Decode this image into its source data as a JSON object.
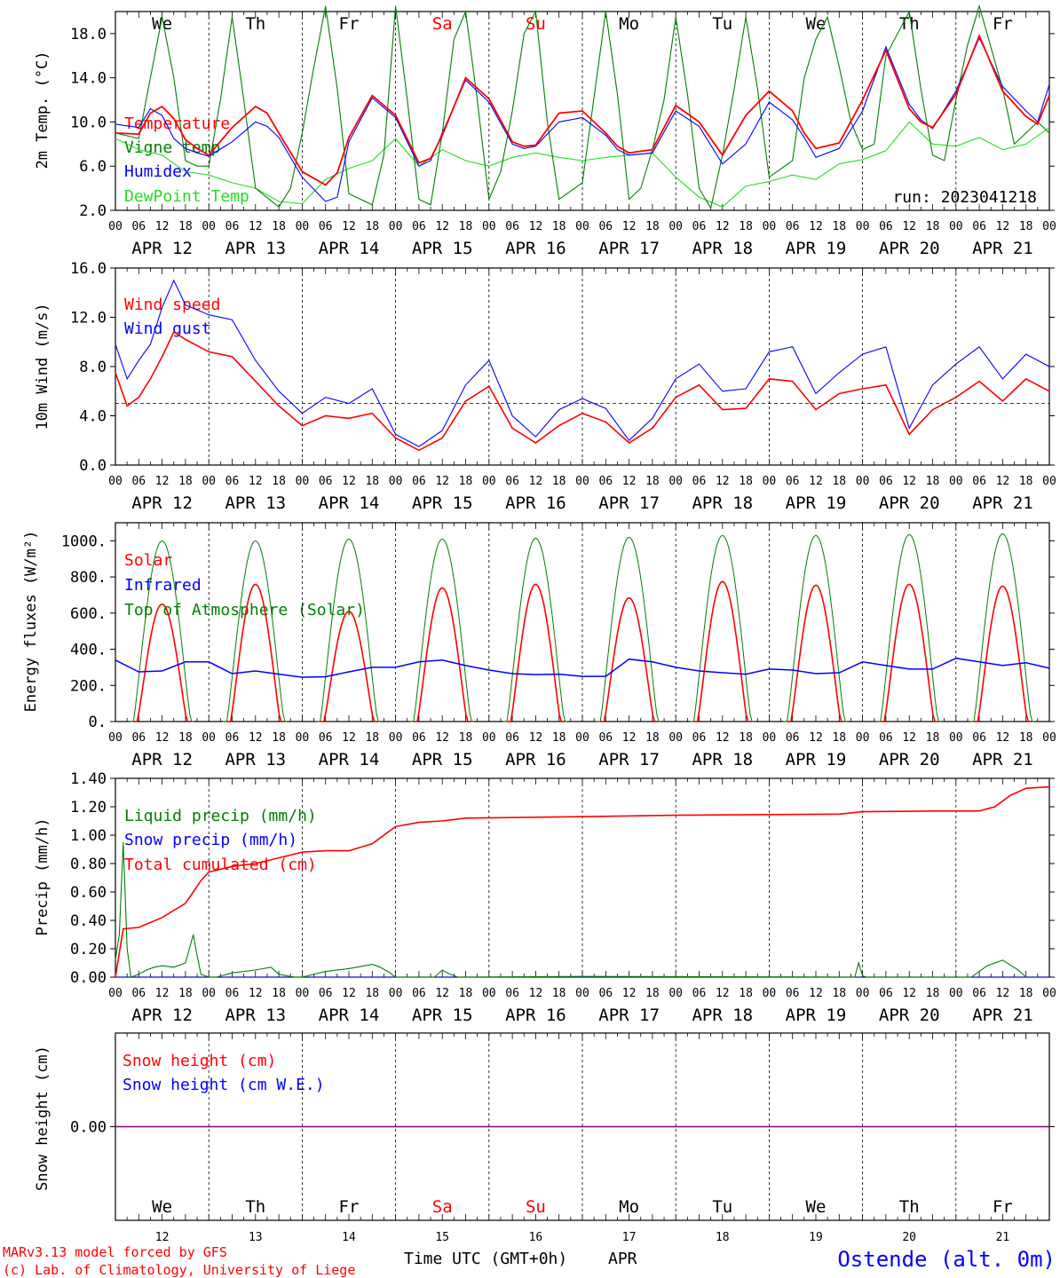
{
  "footer": {
    "model": "MARv3.13 model forced by GFS",
    "credit": "(c) Lab. of Climatology, University of Liege",
    "xlabel": "Time UTC (GMT+0h)",
    "month": "APR",
    "station": "Ostende (alt. 0m)",
    "day_numbers": [
      "12",
      "13",
      "14",
      "15",
      "16",
      "17",
      "18",
      "19",
      "20",
      "21"
    ]
  },
  "days": {
    "dates": [
      "APR 12",
      "APR 13",
      "APR 14",
      "APR 15",
      "APR 16",
      "APR 17",
      "APR 18",
      "APR 19",
      "APR 20",
      "APR 21"
    ],
    "weekdays": [
      "We",
      "Th",
      "Fr",
      "Sa",
      "Su",
      "Mo",
      "Tu",
      "We",
      "Th",
      "Fr"
    ],
    "weekend_color": "#ff0000",
    "hour_ticks": [
      "00",
      "06",
      "12",
      "18"
    ],
    "last_tick": "00"
  },
  "colors": {
    "red": "#ff0000",
    "green": "#007f00",
    "blue": "#0000ff",
    "lightgreen": "#22dd22",
    "purple": "#7f007f"
  },
  "chart_data": [
    {
      "type": "line",
      "ylabel": "2m Temp. (°C)",
      "ylim": [
        2,
        20
      ],
      "yticks": [
        "2.0",
        "6.0",
        "10.0",
        "14.0",
        "18.0"
      ],
      "annotation": "run: 2023041218",
      "x_unit": "hours since 00 UTC APR 12",
      "series": [
        {
          "name": "Temperature",
          "color": "#ff0000",
          "x": [
            0,
            6,
            9,
            12,
            15,
            18,
            21,
            24,
            30,
            36,
            39,
            42,
            48,
            54,
            57,
            60,
            66,
            72,
            78,
            81,
            84,
            90,
            96,
            102,
            105,
            108,
            114,
            120,
            126,
            129,
            132,
            138,
            144,
            150,
            156,
            162,
            168,
            174,
            177,
            180,
            186,
            192,
            198,
            204,
            207,
            210,
            216,
            222,
            228,
            234,
            237,
            240
          ],
          "y": [
            9.0,
            8.9,
            10.8,
            11.4,
            10.3,
            8.4,
            7.6,
            7.0,
            9.5,
            11.4,
            10.8,
            9.0,
            5.5,
            4.3,
            5.4,
            8.6,
            12.4,
            10.6,
            6.3,
            6.7,
            8.8,
            14.0,
            12.1,
            8.2,
            7.8,
            7.9,
            10.8,
            11.0,
            9.0,
            7.8,
            7.2,
            7.5,
            11.5,
            10.0,
            7.0,
            10.6,
            12.8,
            11.0,
            9.0,
            7.6,
            8.1,
            12.0,
            16.5,
            11.2,
            10.0,
            9.5,
            12.5,
            17.8,
            12.8,
            10.5,
            9.8,
            12.4
          ]
        },
        {
          "name": "Vigne temp",
          "color": "#007f00",
          "x": [
            0,
            6,
            9,
            12,
            15,
            18,
            21,
            24,
            27,
            30,
            33,
            36,
            42,
            45,
            48,
            51,
            54,
            57,
            60,
            66,
            69,
            72,
            75,
            78,
            81,
            84,
            87,
            90,
            93,
            96,
            99,
            102,
            105,
            108,
            111,
            114,
            120,
            126,
            129,
            132,
            135,
            138,
            141,
            144,
            147,
            150,
            153,
            156,
            159,
            162,
            165,
            168,
            174,
            177,
            180,
            183,
            186,
            189,
            192,
            195,
            198,
            204,
            207,
            210,
            213,
            216,
            219,
            222,
            228,
            231,
            234,
            237,
            240
          ],
          "y": [
            9.0,
            8.5,
            14.0,
            19.5,
            14.0,
            6.5,
            6.0,
            6.0,
            12.0,
            19.5,
            12.0,
            4.0,
            2.3,
            4.0,
            9.0,
            15.0,
            20.5,
            13.0,
            3.5,
            2.5,
            7.0,
            20.5,
            12.0,
            3.0,
            2.5,
            9.0,
            17.5,
            20.0,
            12.0,
            3.0,
            5.5,
            11.0,
            18.0,
            20.0,
            10.0,
            3.0,
            4.5,
            20.0,
            12.5,
            3.0,
            4.0,
            7.5,
            12.0,
            19.5,
            12.5,
            4.0,
            2.2,
            7.0,
            13.0,
            19.5,
            13.0,
            5.0,
            6.5,
            14.0,
            17.5,
            19.5,
            15.0,
            10.0,
            7.5,
            8.0,
            16.0,
            20.0,
            13.0,
            7.0,
            6.5,
            12.0,
            17.0,
            20.5,
            13.0,
            8.0,
            9.0,
            10.0,
            9.0
          ]
        },
        {
          "name": "Humidex",
          "color": "#0000ff",
          "x": [
            0,
            6,
            9,
            12,
            15,
            18,
            21,
            24,
            30,
            36,
            39,
            42,
            48,
            54,
            57,
            60,
            66,
            72,
            78,
            81,
            84,
            90,
            96,
            102,
            105,
            108,
            114,
            120,
            126,
            129,
            132,
            138,
            144,
            150,
            156,
            162,
            168,
            174,
            177,
            180,
            186,
            192,
            198,
            204,
            207,
            210,
            216,
            222,
            228,
            234,
            237,
            240
          ],
          "y": [
            9.8,
            9.5,
            11.2,
            10.6,
            8.5,
            7.6,
            7.2,
            6.9,
            8.2,
            10.0,
            9.6,
            8.6,
            5.0,
            2.8,
            3.2,
            8.2,
            12.2,
            10.4,
            6.0,
            6.5,
            9.0,
            13.8,
            11.8,
            8.0,
            7.6,
            7.8,
            10.0,
            10.4,
            8.8,
            7.5,
            7.0,
            7.2,
            11.0,
            9.6,
            6.2,
            8.0,
            11.8,
            10.2,
            8.6,
            6.8,
            7.6,
            11.0,
            16.8,
            11.6,
            10.2,
            9.4,
            12.8,
            17.6,
            13.2,
            11.0,
            10.0,
            13.4
          ]
        },
        {
          "name": "DewPoint Temp",
          "color": "#22dd22",
          "x": [
            0,
            6,
            12,
            18,
            24,
            30,
            36,
            42,
            48,
            54,
            60,
            66,
            72,
            78,
            84,
            90,
            96,
            102,
            108,
            114,
            120,
            126,
            132,
            138,
            144,
            150,
            156,
            162,
            168,
            174,
            180,
            186,
            192,
            198,
            204,
            210,
            216,
            222,
            228,
            234,
            240
          ],
          "y": [
            8.5,
            7.5,
            7.0,
            5.5,
            5.2,
            4.5,
            4.0,
            2.8,
            2.6,
            4.8,
            5.8,
            6.5,
            8.5,
            6.0,
            7.5,
            6.5,
            6.0,
            6.8,
            7.2,
            6.8,
            6.5,
            6.8,
            7.0,
            7.2,
            5.0,
            3.2,
            2.3,
            4.2,
            4.6,
            5.2,
            4.8,
            6.2,
            6.6,
            7.4,
            10.0,
            8.0,
            7.8,
            8.6,
            7.5,
            8.0,
            9.5
          ]
        }
      ]
    },
    {
      "type": "line",
      "ylabel": "10m Wind (m/s)",
      "ylim": [
        0,
        16
      ],
      "yticks": [
        "0.0",
        "4.0",
        "8.0",
        "12.0",
        "16.0"
      ],
      "reference_line": 5,
      "x_unit": "hours since 00 UTC APR 12",
      "series": [
        {
          "name": "Wind speed",
          "color": "#ff0000",
          "x": [
            0,
            3,
            6,
            9,
            12,
            15,
            18,
            24,
            30,
            36,
            42,
            48,
            54,
            60,
            66,
            72,
            78,
            84,
            90,
            96,
            102,
            108,
            114,
            120,
            126,
            132,
            138,
            144,
            150,
            156,
            162,
            168,
            174,
            180,
            186,
            192,
            198,
            204,
            210,
            216,
            222,
            228,
            234,
            240
          ],
          "y": [
            7.5,
            4.8,
            5.5,
            7.0,
            8.8,
            10.8,
            10.2,
            9.2,
            8.8,
            6.8,
            4.8,
            3.2,
            4.0,
            3.8,
            4.2,
            2.2,
            1.2,
            2.2,
            5.2,
            6.4,
            3.0,
            1.8,
            3.2,
            4.2,
            3.5,
            1.8,
            3.0,
            5.5,
            6.5,
            4.5,
            4.6,
            7.0,
            6.8,
            4.5,
            5.8,
            6.2,
            6.5,
            2.5,
            4.5,
            5.5,
            6.8,
            5.2,
            7.0,
            6.0
          ]
        },
        {
          "name": "Wind gust",
          "color": "#0000ff",
          "x": [
            0,
            3,
            6,
            9,
            12,
            15,
            18,
            24,
            30,
            36,
            42,
            48,
            54,
            60,
            66,
            72,
            78,
            84,
            90,
            96,
            102,
            108,
            114,
            120,
            126,
            132,
            138,
            144,
            150,
            156,
            162,
            168,
            174,
            180,
            186,
            192,
            198,
            204,
            210,
            216,
            222,
            228,
            234,
            240
          ],
          "y": [
            9.8,
            7.0,
            8.5,
            9.8,
            12.8,
            15.0,
            13.0,
            12.2,
            11.8,
            8.5,
            6.0,
            4.2,
            5.5,
            5.0,
            6.2,
            2.5,
            1.5,
            2.8,
            6.5,
            8.5,
            4.0,
            2.3,
            4.5,
            5.4,
            4.6,
            2.0,
            3.8,
            7.0,
            8.2,
            6.0,
            6.2,
            9.2,
            9.6,
            5.8,
            7.5,
            9.0,
            9.6,
            3.0,
            6.5,
            8.2,
            9.6,
            7.0,
            9.0,
            8.0
          ]
        }
      ]
    },
    {
      "type": "line",
      "ylabel": "Energy fluxes (W/m²)",
      "ylim": [
        0,
        1100
      ],
      "yticks": [
        "0.",
        "200.",
        "400.",
        "600.",
        "800.",
        "1000."
      ],
      "x_unit": "hours since 00 UTC APR 12",
      "peaks": {
        "solar": [
          650,
          760,
          610,
          740,
          760,
          685,
          775,
          755,
          760,
          750
        ],
        "top_of_atmosphere": [
          1000,
          1000,
          1010,
          1010,
          1015,
          1020,
          1030,
          1030,
          1035,
          1040
        ]
      },
      "series": [
        {
          "name": "Solar",
          "color": "#ff0000"
        },
        {
          "name": "Infrared",
          "color": "#0000ff",
          "x": [
            0,
            6,
            12,
            18,
            24,
            30,
            36,
            42,
            48,
            54,
            60,
            66,
            72,
            78,
            84,
            90,
            96,
            102,
            108,
            114,
            120,
            126,
            132,
            138,
            144,
            150,
            156,
            162,
            168,
            174,
            180,
            186,
            192,
            198,
            204,
            210,
            216,
            222,
            228,
            234,
            240
          ],
          "y": [
            340,
            275,
            280,
            330,
            330,
            265,
            280,
            262,
            245,
            248,
            275,
            300,
            300,
            330,
            340,
            310,
            285,
            265,
            260,
            262,
            250,
            250,
            345,
            330,
            300,
            280,
            270,
            262,
            290,
            285,
            265,
            270,
            330,
            310,
            290,
            290,
            350,
            330,
            310,
            325,
            295
          ]
        },
        {
          "name": "Top of Atmosphere (Solar)",
          "color": "#007f00"
        }
      ]
    },
    {
      "type": "line",
      "ylabel": "Precip (mm/h)",
      "ylim": [
        0,
        1.4
      ],
      "yticks": [
        "0.00",
        "0.20",
        "0.40",
        "0.60",
        "0.80",
        "1.00",
        "1.20",
        "1.40"
      ],
      "x_unit": "hours since 00 UTC APR 12",
      "series": [
        {
          "name": "Liquid precip (mm/h)",
          "color": "#007f00",
          "x": [
            0,
            1,
            2,
            3,
            4,
            6,
            8,
            10,
            12,
            15,
            18,
            20,
            21,
            22,
            24,
            26,
            30,
            36,
            40,
            42,
            46,
            48,
            54,
            60,
            66,
            68,
            70,
            72,
            82,
            84,
            86,
            88,
            90,
            120,
            190,
            191,
            192,
            193,
            220,
            224,
            228,
            232,
            234
          ],
          "y": [
            0.12,
            0.3,
            0.95,
            0.2,
            0.0,
            0.02,
            0.05,
            0.07,
            0.08,
            0.07,
            0.1,
            0.3,
            0.15,
            0.02,
            0.0,
            0.0,
            0.03,
            0.05,
            0.07,
            0.02,
            0.0,
            0.0,
            0.04,
            0.06,
            0.09,
            0.07,
            0.04,
            0.0,
            0.0,
            0.05,
            0.02,
            0.0,
            0.0,
            0.005,
            0.0,
            0.1,
            0.01,
            0.0,
            0.0,
            0.08,
            0.12,
            0.05,
            0.0
          ]
        },
        {
          "name": "Snow precip (mm/h)",
          "color": "#0000ff",
          "x": [
            0,
            240
          ],
          "y": [
            0,
            0
          ]
        },
        {
          "name": "Total cumulated (cm)",
          "color": "#ff0000",
          "x": [
            0,
            2,
            6,
            12,
            18,
            20,
            22,
            24,
            30,
            36,
            42,
            48,
            54,
            60,
            66,
            70,
            72,
            78,
            84,
            90,
            120,
            144,
            168,
            186,
            192,
            210,
            216,
            222,
            226,
            230,
            234,
            240
          ],
          "y": [
            0,
            0.34,
            0.35,
            0.42,
            0.52,
            0.6,
            0.68,
            0.74,
            0.78,
            0.8,
            0.84,
            0.88,
            0.89,
            0.89,
            0.94,
            1.02,
            1.06,
            1.09,
            1.1,
            1.12,
            1.13,
            1.14,
            1.145,
            1.148,
            1.165,
            1.17,
            1.17,
            1.17,
            1.2,
            1.28,
            1.33,
            1.34
          ]
        }
      ]
    },
    {
      "type": "line",
      "ylabel": "Snow height (cm)",
      "ytick": "0.00",
      "x_unit": "hours since 00 UTC APR 12",
      "series": [
        {
          "name": "Snow height (cm)",
          "color": "#ff0000",
          "x": [
            0,
            240
          ],
          "y": [
            0,
            0
          ]
        },
        {
          "name": "Snow height (cm W.E.)",
          "color": "#0000ff",
          "x": [
            0,
            240
          ],
          "y": [
            0,
            0
          ]
        }
      ]
    }
  ]
}
